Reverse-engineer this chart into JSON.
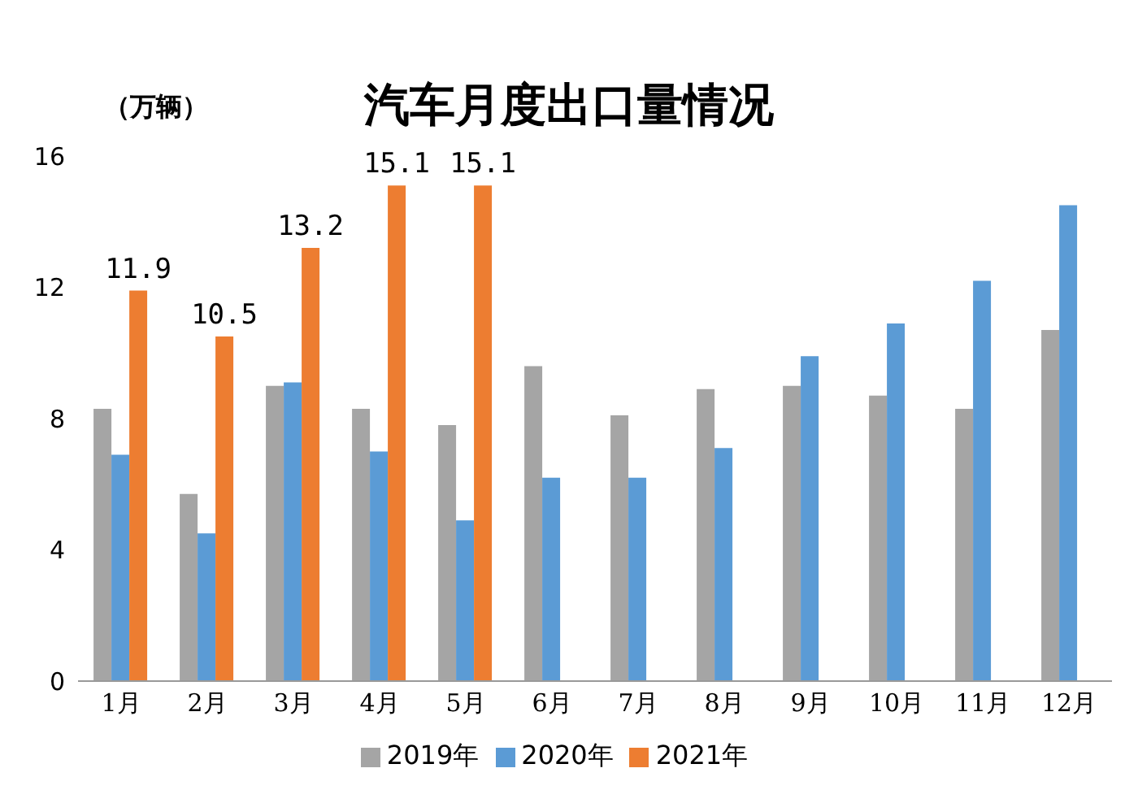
{
  "chart_data": {
    "type": "bar",
    "title": "汽车月度出口量情况",
    "ylabel": "（万辆）",
    "categories": [
      "1月",
      "2月",
      "3月",
      "4月",
      "5月",
      "6月",
      "7月",
      "8月",
      "9月",
      "10月",
      "11月",
      "12月"
    ],
    "series": [
      {
        "name": "2019年",
        "color": "#a5a5a5",
        "values": [
          8.3,
          5.7,
          9.0,
          8.3,
          7.8,
          9.6,
          8.1,
          8.9,
          9.0,
          8.7,
          8.3,
          10.7
        ]
      },
      {
        "name": "2020年",
        "color": "#5b9bd5",
        "values": [
          6.9,
          4.5,
          9.1,
          7.0,
          4.9,
          6.2,
          6.2,
          7.1,
          9.9,
          10.9,
          12.2,
          14.5
        ]
      },
      {
        "name": "2021年",
        "color": "#ed7d31",
        "values": [
          11.9,
          10.5,
          13.2,
          15.1,
          15.1,
          null,
          null,
          null,
          null,
          null,
          null,
          null
        ],
        "value_labels": [
          "11.9",
          "10.5",
          "13.2",
          "15.1",
          "15.1",
          null,
          null,
          null,
          null,
          null,
          null,
          null
        ]
      }
    ],
    "ylim": [
      0,
      16
    ],
    "yticks": [
      0,
      4,
      8,
      12,
      16
    ],
    "grid": false,
    "legend": "bottom"
  }
}
